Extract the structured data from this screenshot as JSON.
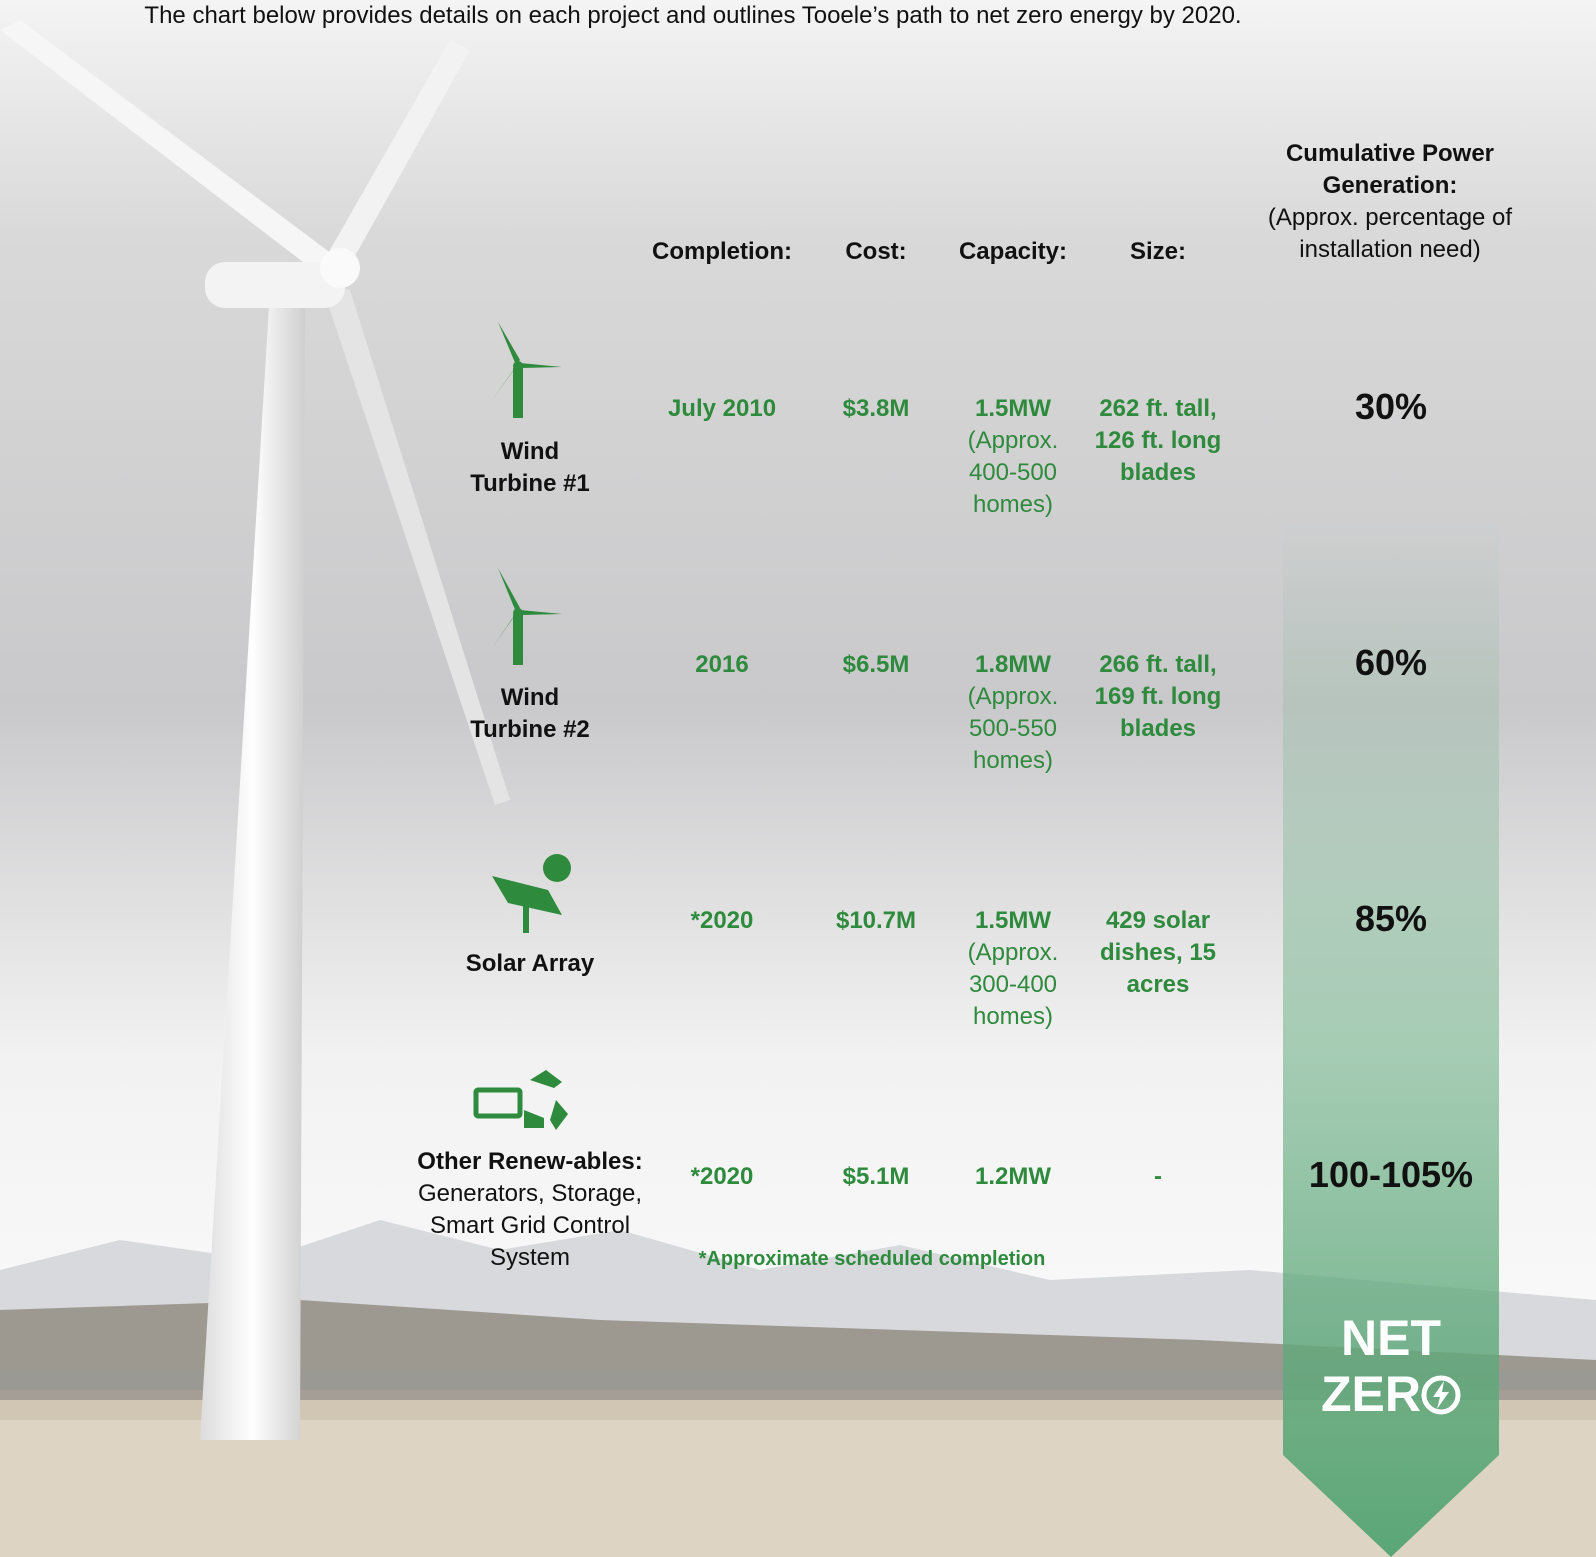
{
  "intro": "The chart below provides details on each project and outlines Tooele’s path to net zero energy by 2020.",
  "table": {
    "headers": {
      "completion": "Completion:",
      "cost": "Cost:",
      "capacity": "Capacity:",
      "size": "Size:",
      "cumulative": "Cumulative Power Generation:",
      "cumulative_note": "(Approx. percentage of installation need)"
    },
    "rows": [
      {
        "project": [
          "Wind",
          "Turbine #1"
        ],
        "completion": "July 2010",
        "cost": "$3.8M",
        "capacity": "1.5MW",
        "capacity_note": "(Approx. 400-500 homes)",
        "size": "262 ft. tall, 126 ft. long blades",
        "cumulative": "30%"
      },
      {
        "project": [
          "Wind",
          "Turbine #2"
        ],
        "completion": "2016",
        "cost": "$6.5M",
        "capacity": "1.8MW",
        "capacity_note": "(Approx. 500-550 homes)",
        "size": "266 ft. tall, 169 ft. long blades",
        "cumulative": "60%"
      },
      {
        "project": [
          "Solar Array"
        ],
        "completion": "*2020",
        "cost": "$10.7M",
        "capacity": "1.5MW",
        "capacity_note": "(Approx. 300-400 homes)",
        "size": "429 solar dishes, 15 acres",
        "cumulative": "85%"
      },
      {
        "project": [
          "Other Renew-ables:",
          "Generators, Storage, Smart Grid Control System"
        ],
        "completion": "*2020",
        "cost": "$5.1M",
        "capacity": "1.2MW",
        "size": "-",
        "cumulative": "100-105%"
      }
    ],
    "footnote": "*Approximate scheduled completion"
  },
  "badge": [
    "NET",
    "ZER"
  ]
}
